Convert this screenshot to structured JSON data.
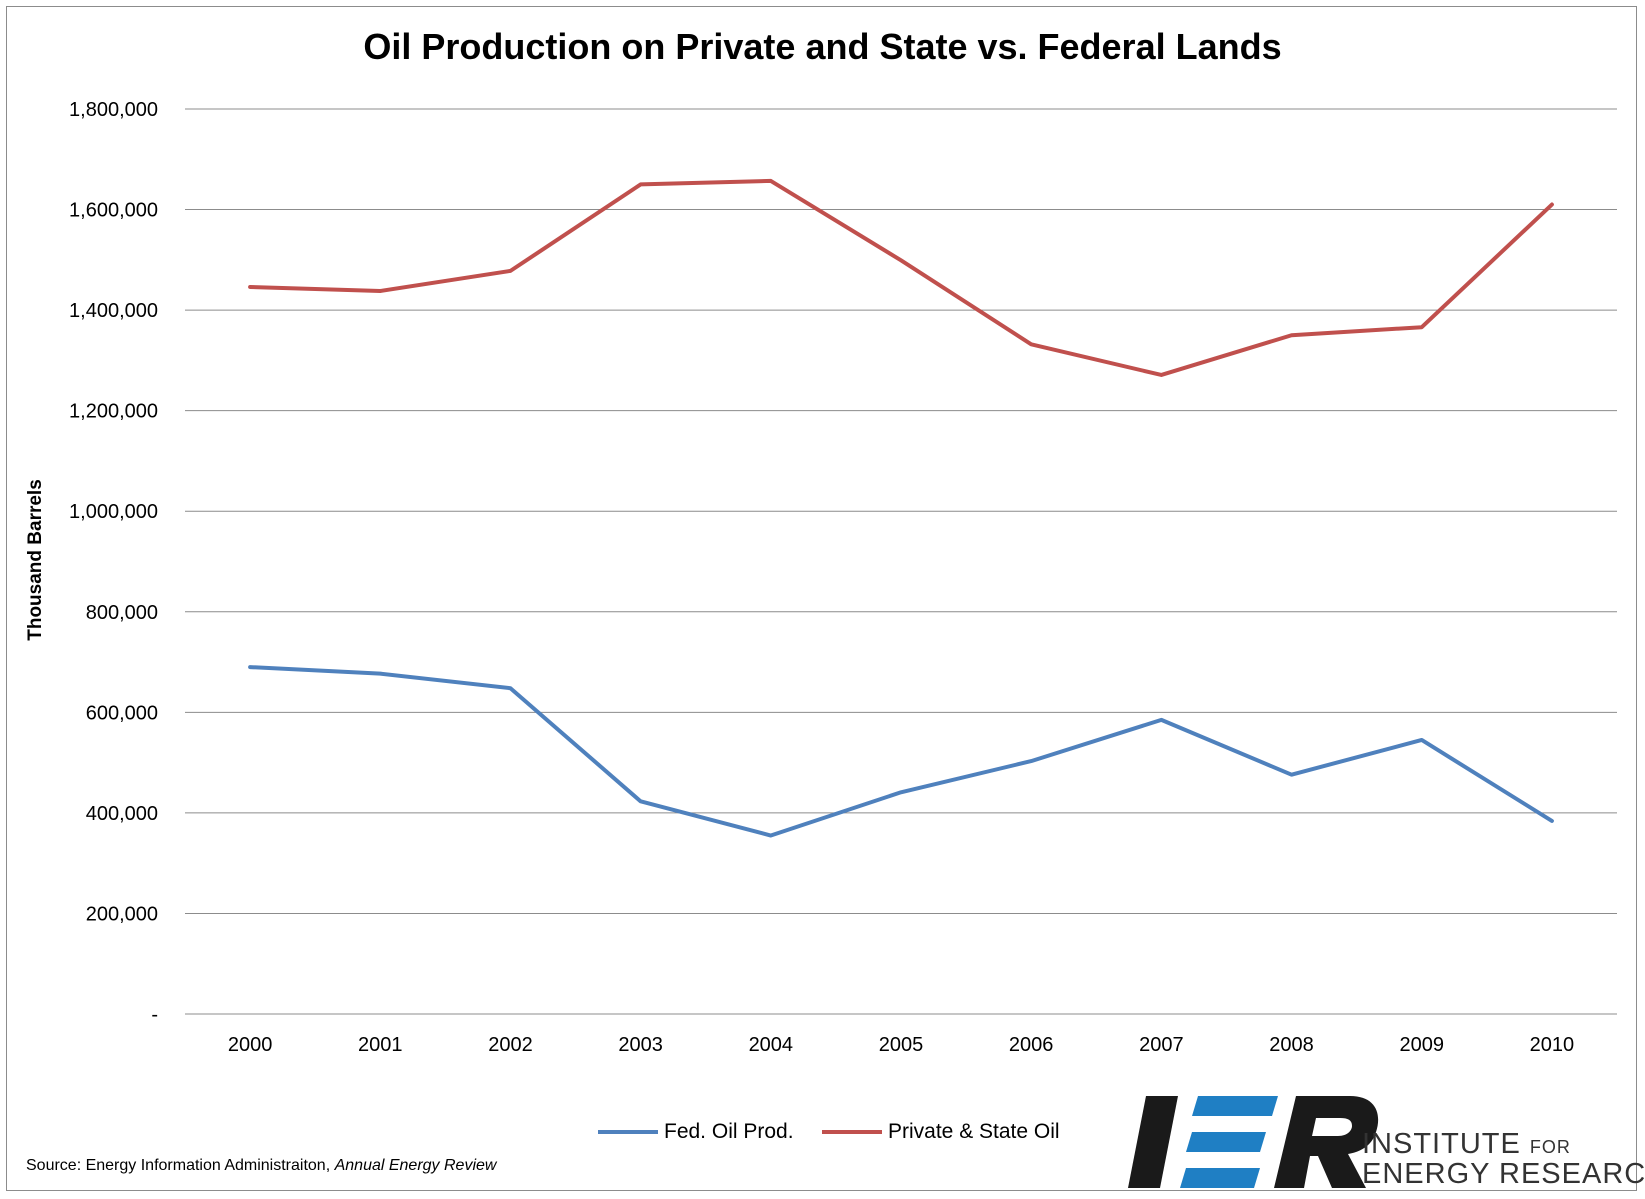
{
  "chart_data": {
    "type": "line",
    "title": "Oil Production on Private and State vs. Federal Lands",
    "xlabel": "",
    "ylabel": "Thousand Barrels",
    "categories": [
      "2000",
      "2001",
      "2002",
      "2003",
      "2004",
      "2005",
      "2006",
      "2007",
      "2008",
      "2009",
      "2010"
    ],
    "ylim": [
      0,
      1800000
    ],
    "yticks": [
      "-",
      "200,000",
      "400,000",
      "600,000",
      "800,000",
      "1,000,000",
      "1,200,000",
      "1,400,000",
      "1,600,000",
      "1,800,000"
    ],
    "ytick_values": [
      0,
      200000,
      400000,
      600000,
      800000,
      1000000,
      1200000,
      1400000,
      1600000,
      1800000
    ],
    "grid": true,
    "legend_position": "bottom",
    "series": [
      {
        "name": "Fed. Oil Prod.",
        "color": "#4f81bd",
        "values": [
          690000,
          677000,
          648000,
          423000,
          355000,
          441000,
          503000,
          585000,
          476000,
          545000,
          384000
        ]
      },
      {
        "name": "Private & State Oil",
        "color": "#c0504d",
        "values": [
          1446000,
          1438000,
          1478000,
          1650000,
          1657000,
          1499000,
          1332000,
          1271000,
          1350000,
          1366000,
          1610000
        ]
      }
    ]
  },
  "source": {
    "prefix": "Source: Energy Information Administraiton, ",
    "work": "Annual Energy Review"
  },
  "logo": {
    "letters": "IER",
    "line1_main": "INSTITUTE ",
    "line1_small": "FOR",
    "line2": "ENERGY RESEARCH",
    "colors": {
      "dark": "#1a1a1a",
      "blue": "#1f7fc4"
    }
  }
}
